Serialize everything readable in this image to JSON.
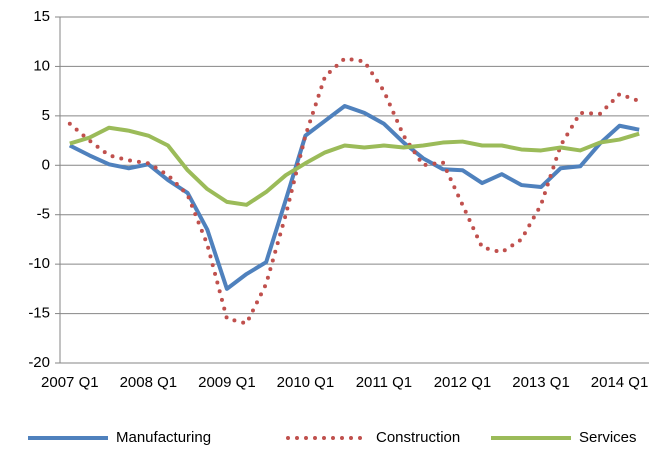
{
  "chart_data": {
    "type": "line",
    "categories": [
      "2007 Q1",
      null,
      null,
      null,
      "2008 Q1",
      null,
      null,
      null,
      "2009 Q1",
      null,
      null,
      null,
      "2010 Q1",
      null,
      null,
      null,
      "2011 Q1",
      null,
      null,
      null,
      "2012 Q1",
      null,
      null,
      null,
      "2013 Q1",
      null,
      null,
      null,
      "2014 Q1",
      null
    ],
    "series": [
      {
        "name": "Manufacturing",
        "color": "#4f81bd",
        "style": "solid",
        "values": [
          2.0,
          1.0,
          0.1,
          -0.3,
          0.1,
          -1.5,
          -2.8,
          -6.5,
          -12.5,
          -11.0,
          -9.8,
          -3.5,
          3.0,
          4.5,
          6.0,
          5.3,
          4.2,
          2.3,
          0.7,
          -0.4,
          -0.5,
          -1.8,
          -0.9,
          -2.0,
          -2.2,
          -0.3,
          -0.1,
          2.2,
          4.0,
          3.6
        ]
      },
      {
        "name": "Construction",
        "color": "#c0504d",
        "style": "dotted",
        "values": [
          4.2,
          2.5,
          1.0,
          0.5,
          0.2,
          -1.0,
          -3.0,
          -8.0,
          -15.5,
          -16.0,
          -12.0,
          -5.0,
          3.0,
          9.0,
          10.8,
          10.5,
          7.5,
          3.0,
          0.0,
          0.3,
          -4.0,
          -8.3,
          -8.8,
          -7.5,
          -4.0,
          2.0,
          5.3,
          5.2,
          7.2,
          6.5
        ]
      },
      {
        "name": "Services",
        "color": "#9bbb59",
        "style": "solid",
        "values": [
          2.2,
          2.8,
          3.8,
          3.5,
          3.0,
          2.0,
          -0.5,
          -2.4,
          -3.7,
          -4.0,
          -2.7,
          -1.0,
          0.2,
          1.3,
          2.0,
          1.8,
          2.0,
          1.8,
          2.0,
          2.3,
          2.4,
          2.0,
          2.0,
          1.6,
          1.5,
          1.8,
          1.5,
          2.3,
          2.6,
          3.2
        ]
      }
    ],
    "ylim": [
      -20,
      15
    ],
    "yticks": [
      -20,
      -15,
      -10,
      -5,
      0,
      5,
      10,
      15
    ],
    "grid": true,
    "legend": "bottom"
  }
}
